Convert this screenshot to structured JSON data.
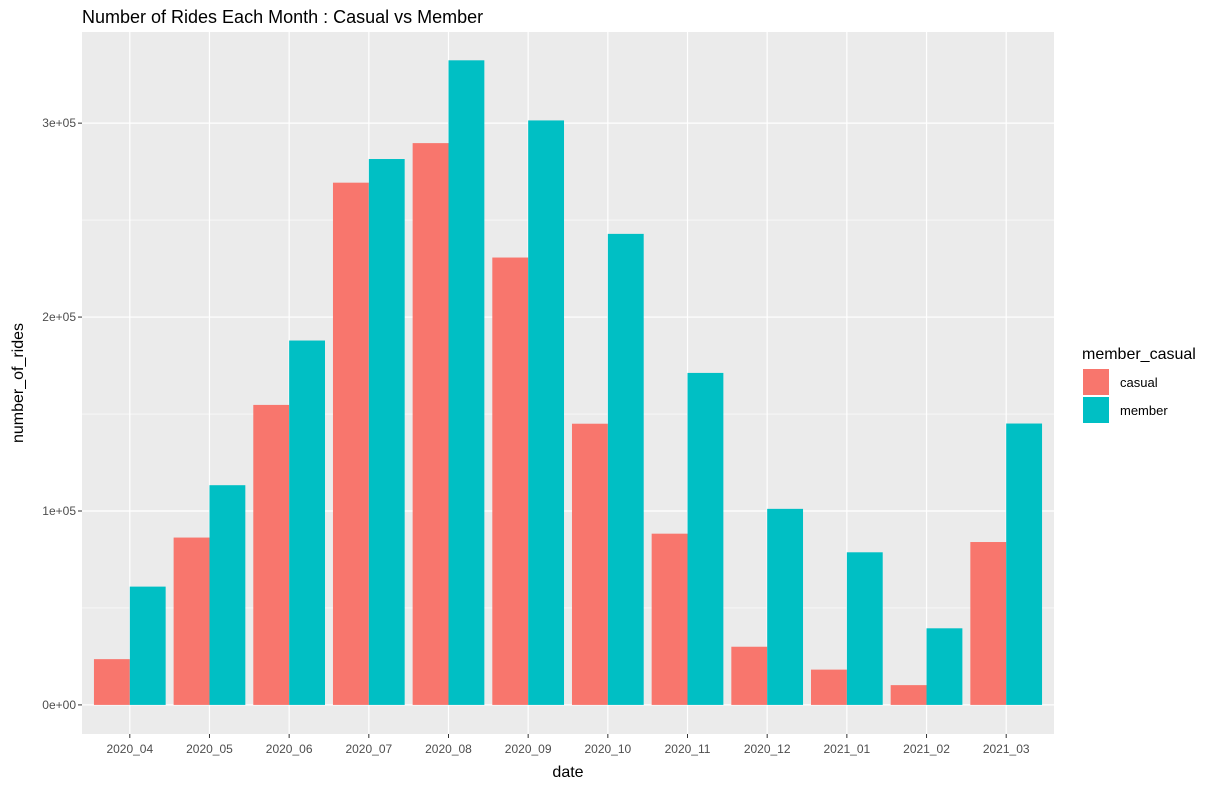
{
  "chart_data": {
    "type": "bar",
    "title": "Number of Rides Each Month : Casual vs Member",
    "xlabel": "date",
    "ylabel": "number_of_rides",
    "categories": [
      "2020_04",
      "2020_05",
      "2020_06",
      "2020_07",
      "2020_08",
      "2020_09",
      "2020_10",
      "2020_11",
      "2020_12",
      "2021_01",
      "2021_02",
      "2021_03"
    ],
    "series": [
      {
        "name": "casual",
        "color": "#F8766D",
        "values": [
          23600,
          86300,
          154700,
          269300,
          289700,
          230700,
          145000,
          88300,
          30000,
          18200,
          10200,
          84000
        ]
      },
      {
        "name": "member",
        "color": "#00BFC4",
        "values": [
          61000,
          113300,
          187900,
          281500,
          332400,
          301400,
          242900,
          171200,
          101100,
          78700,
          39500,
          145100
        ]
      }
    ],
    "ylim": [
      -15000,
      347000
    ],
    "yticks": [
      0,
      100000,
      200000,
      300000
    ],
    "ytick_labels": [
      "0e+00",
      "1e+05",
      "2e+05",
      "3e+05"
    ],
    "grid": true,
    "legend": {
      "title": "member_casual",
      "position": "right",
      "labels": [
        "casual",
        "member"
      ]
    }
  }
}
